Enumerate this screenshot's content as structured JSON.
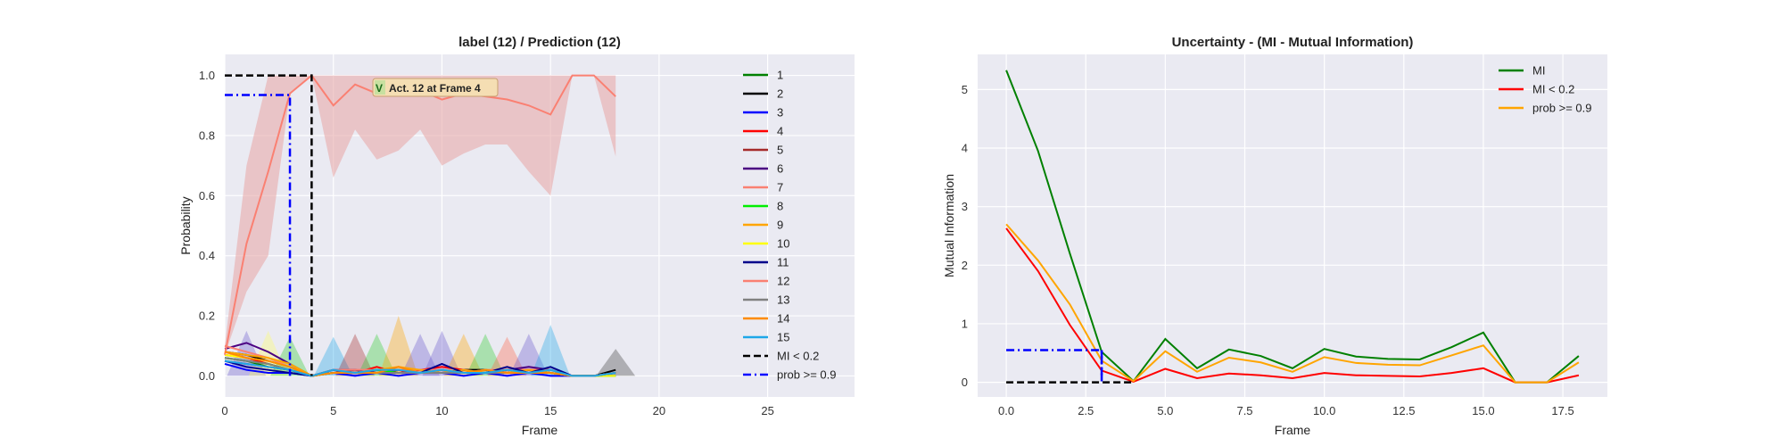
{
  "chart_data": [
    {
      "type": "line",
      "title": "label (12) / Prediction (12)",
      "xlabel": "Frame",
      "ylabel": "Probability",
      "xlim": [
        0,
        29
      ],
      "ylim": [
        -0.07,
        1.07
      ],
      "xticks": [
        0,
        5,
        10,
        15,
        20,
        25
      ],
      "yticks": [
        0.0,
        0.2,
        0.4,
        0.6,
        0.8,
        1.0
      ],
      "grid": true,
      "legend_position": "right",
      "x": [
        0,
        1,
        2,
        3,
        4,
        5,
        6,
        7,
        8,
        9,
        10,
        11,
        12,
        13,
        14,
        15,
        16,
        17,
        18
      ],
      "series": [
        {
          "name": "1",
          "color": "#008000",
          "values": [
            0.06,
            0.05,
            0.03,
            0.02,
            0.0,
            0.02,
            0.01,
            0.02,
            0.01,
            0.01,
            0.02,
            0.01,
            0.02,
            0.01,
            0.02,
            0.01,
            0.0,
            0.0,
            0.01
          ]
        },
        {
          "name": "2",
          "color": "#000000",
          "values": [
            0.08,
            0.07,
            0.05,
            0.03,
            0.0,
            0.01,
            0.01,
            0.02,
            0.02,
            0.01,
            0.01,
            0.02,
            0.02,
            0.01,
            0.02,
            0.01,
            0.0,
            0.0,
            0.02
          ]
        },
        {
          "name": "3",
          "color": "#0000ff",
          "values": [
            0.04,
            0.02,
            0.01,
            0.01,
            0.0,
            0.01,
            0.0,
            0.01,
            0.0,
            0.01,
            0.01,
            0.0,
            0.01,
            0.0,
            0.01,
            0.0,
            0.0,
            0.0,
            0.0
          ]
        },
        {
          "name": "4",
          "color": "#ff0000",
          "values": [
            0.07,
            0.06,
            0.04,
            0.02,
            0.0,
            0.02,
            0.01,
            0.03,
            0.01,
            0.02,
            0.03,
            0.02,
            0.01,
            0.02,
            0.02,
            0.02,
            0.0,
            0.0,
            0.01
          ]
        },
        {
          "name": "5",
          "color": "#a52a2a",
          "values": [
            0.05,
            0.04,
            0.03,
            0.02,
            0.0,
            0.01,
            0.02,
            0.01,
            0.01,
            0.01,
            0.02,
            0.01,
            0.01,
            0.01,
            0.01,
            0.01,
            0.0,
            0.0,
            0.01
          ]
        },
        {
          "name": "6",
          "color": "#4b0082",
          "values": [
            0.09,
            0.11,
            0.08,
            0.04,
            0.0,
            0.02,
            0.02,
            0.01,
            0.02,
            0.01,
            0.01,
            0.02,
            0.01,
            0.02,
            0.03,
            0.02,
            0.0,
            0.0,
            0.01
          ]
        },
        {
          "name": "7",
          "color": "#fa8072",
          "values": [
            0.1,
            0.08,
            0.06,
            0.03,
            0.0,
            0.02,
            0.02,
            0.02,
            0.02,
            0.02,
            0.02,
            0.01,
            0.02,
            0.02,
            0.02,
            0.02,
            0.0,
            0.0,
            0.01
          ]
        },
        {
          "name": "8",
          "color": "#00ee00",
          "values": [
            0.06,
            0.05,
            0.04,
            0.02,
            0.0,
            0.01,
            0.01,
            0.02,
            0.01,
            0.01,
            0.01,
            0.01,
            0.01,
            0.01,
            0.01,
            0.01,
            0.0,
            0.0,
            0.0
          ]
        },
        {
          "name": "9",
          "color": "#ffa500",
          "values": [
            0.08,
            0.07,
            0.06,
            0.04,
            0.0,
            0.01,
            0.01,
            0.02,
            0.03,
            0.02,
            0.01,
            0.02,
            0.01,
            0.01,
            0.02,
            0.01,
            0.0,
            0.0,
            0.01
          ]
        },
        {
          "name": "10",
          "color": "#ffff00",
          "values": [
            0.07,
            0.06,
            0.05,
            0.03,
            0.0,
            0.01,
            0.01,
            0.01,
            0.01,
            0.01,
            0.01,
            0.01,
            0.01,
            0.01,
            0.01,
            0.01,
            0.0,
            0.0,
            0.0
          ]
        },
        {
          "name": "11",
          "color": "#00008b",
          "values": [
            0.05,
            0.03,
            0.02,
            0.01,
            0.0,
            0.01,
            0.01,
            0.01,
            0.01,
            0.01,
            0.04,
            0.01,
            0.01,
            0.03,
            0.01,
            0.03,
            0.0,
            0.0,
            0.01
          ]
        },
        {
          "name": "12",
          "color": "#fa8072",
          "values": [
            0.07,
            0.44,
            0.68,
            0.94,
            1.0,
            0.9,
            0.97,
            0.94,
            0.95,
            0.95,
            0.92,
            0.94,
            0.93,
            0.92,
            0.9,
            0.87,
            1.0,
            1.0,
            0.93
          ]
        },
        {
          "name": "13",
          "color": "#808080",
          "values": [
            0.06,
            0.05,
            0.04,
            0.02,
            0.0,
            0.01,
            0.01,
            0.01,
            0.01,
            0.01,
            0.01,
            0.01,
            0.01,
            0.01,
            0.01,
            0.01,
            0.0,
            0.0,
            0.01
          ]
        },
        {
          "name": "14",
          "color": "#ff8c00",
          "values": [
            0.08,
            0.06,
            0.05,
            0.03,
            0.0,
            0.01,
            0.01,
            0.01,
            0.03,
            0.01,
            0.02,
            0.01,
            0.02,
            0.01,
            0.01,
            0.01,
            0.0,
            0.0,
            0.01
          ]
        },
        {
          "name": "15",
          "color": "#1ea7e8",
          "values": [
            0.05,
            0.04,
            0.03,
            0.02,
            0.0,
            0.02,
            0.01,
            0.02,
            0.02,
            0.01,
            0.02,
            0.01,
            0.01,
            0.02,
            0.01,
            0.02,
            0.0,
            0.0,
            0.01
          ]
        }
      ],
      "pred_band": {
        "color": "#e8aaaa",
        "lower": [
          0.07,
          0.28,
          0.4,
          0.94,
          1.0,
          0.66,
          0.82,
          0.72,
          0.75,
          0.82,
          0.7,
          0.74,
          0.77,
          0.77,
          0.68,
          0.6,
          1.0,
          1.0,
          0.73
        ],
        "upper": [
          0.1,
          0.7,
          1.0,
          1.0,
          1.0,
          1.0,
          1.0,
          1.0,
          1.0,
          1.0,
          1.0,
          1.0,
          1.0,
          1.0,
          1.0,
          1.0,
          1.0,
          1.0,
          1.0
        ]
      },
      "minor_band_peaks": [
        {
          "x": 1,
          "color": "#6a5acd",
          "peak": 0.15
        },
        {
          "x": 2,
          "color": "#ffff66",
          "peak": 0.15
        },
        {
          "x": 3,
          "color": "#32cd32",
          "peak": 0.13
        },
        {
          "x": 5,
          "color": "#1ea7e8",
          "peak": 0.13
        },
        {
          "x": 6,
          "color": "#a52a2a",
          "peak": 0.14
        },
        {
          "x": 7,
          "color": "#32cd32",
          "peak": 0.14
        },
        {
          "x": 8,
          "color": "#ffa500",
          "peak": 0.2
        },
        {
          "x": 9,
          "color": "#6a5acd",
          "peak": 0.14
        },
        {
          "x": 10,
          "color": "#6a5acd",
          "peak": 0.15
        },
        {
          "x": 11,
          "color": "#ffa500",
          "peak": 0.14
        },
        {
          "x": 12,
          "color": "#32cd32",
          "peak": 0.14
        },
        {
          "x": 13,
          "color": "#ff6347",
          "peak": 0.13
        },
        {
          "x": 14,
          "color": "#6a5acd",
          "peak": 0.14
        },
        {
          "x": 15,
          "color": "#1ea7e8",
          "peak": 0.17
        },
        {
          "x": 18,
          "color": "#404040",
          "peak": 0.09
        }
      ],
      "ref_lines": [
        {
          "name": "MI < 0.2",
          "color": "#000000",
          "style": "dashed",
          "level": 1.0,
          "x_end": 4
        },
        {
          "name": "prob >= 0.9",
          "color": "#0000ff",
          "style": "dashdot",
          "level": 0.935,
          "x_end": 3
        }
      ],
      "annotation": {
        "mark": "V",
        "text": "Act. 12 at Frame 4",
        "x": 7,
        "y": 0.945
      }
    },
    {
      "type": "line",
      "title": "Uncertainty - (MI - Mutual Information)",
      "xlabel": "Frame",
      "ylabel": "Mutual Information",
      "xlim": [
        -0.9,
        18.9
      ],
      "ylim": [
        -0.25,
        5.6
      ],
      "xticks": [
        0.0,
        2.5,
        5.0,
        7.5,
        10.0,
        12.5,
        15.0,
        17.5
      ],
      "yticks": [
        0,
        1,
        2,
        3,
        4,
        5
      ],
      "grid": true,
      "legend_position": "top-right",
      "x": [
        0,
        1,
        2,
        3,
        4,
        5,
        6,
        7,
        8,
        9,
        10,
        11,
        12,
        13,
        14,
        15,
        16,
        17,
        18
      ],
      "series": [
        {
          "name": "MI",
          "color": "#008000",
          "style": "solid",
          "values": [
            5.33,
            3.95,
            2.2,
            0.52,
            0.02,
            0.74,
            0.24,
            0.56,
            0.45,
            0.24,
            0.57,
            0.44,
            0.4,
            0.39,
            0.6,
            0.85,
            0.0,
            0.0,
            0.45
          ]
        },
        {
          "name": "MI < 0.2",
          "color": "#ff0000",
          "style": "solid",
          "values": [
            2.63,
            1.9,
            0.98,
            0.2,
            0.01,
            0.23,
            0.07,
            0.15,
            0.12,
            0.07,
            0.16,
            0.12,
            0.11,
            0.1,
            0.16,
            0.24,
            0.0,
            0.0,
            0.12
          ]
        },
        {
          "name": "prob >= 0.9",
          "color": "#ffa500",
          "style": "solid",
          "values": [
            2.7,
            2.08,
            1.33,
            0.37,
            0.02,
            0.53,
            0.18,
            0.42,
            0.34,
            0.18,
            0.43,
            0.33,
            0.3,
            0.29,
            0.46,
            0.63,
            0.0,
            0.0,
            0.34
          ]
        }
      ],
      "ref_lines": [
        {
          "color": "#000000",
          "style": "dashed",
          "level": 0.0,
          "x_end": 4
        },
        {
          "color": "#0000ff",
          "style": "dashdot",
          "level": 0.55,
          "x_end": 3
        }
      ]
    }
  ]
}
